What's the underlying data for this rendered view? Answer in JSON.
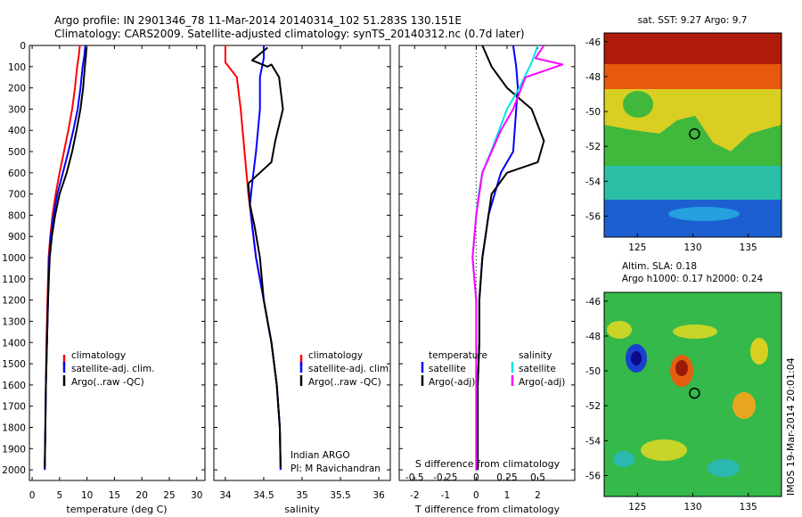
{
  "header": {
    "line1": "Argo profile: IN 2901346_78 11-Mar-2014 20140314_102 51.283S 130.151E",
    "line2": "Climatology: CARS2009. Satellite-adjusted climatology: synTS_20140312.nc (0.7d later)"
  },
  "colors": {
    "climatology": "#ff0000",
    "satellite": "#0000ff",
    "argo": "#000000",
    "satellite_salinity": "#00e5e5",
    "argo_salinity": "#ff00ff"
  },
  "chart_data": [
    {
      "id": "temperature",
      "type": "line",
      "xlabel": "temperature (deg C)",
      "ylabel": "",
      "xlim": [
        -0.5,
        31.5
      ],
      "ylim": [
        2050,
        0
      ],
      "xticks": [
        "0",
        "5",
        "10",
        "15",
        "20",
        "25",
        "30"
      ],
      "xtick_values": [
        0,
        5,
        10,
        15,
        20,
        25,
        30
      ],
      "yticks": [
        "0",
        "100",
        "200",
        "300",
        "400",
        "500",
        "600",
        "700",
        "800",
        "900",
        "1000",
        "1100",
        "1200",
        "1300",
        "1400",
        "1500",
        "1600",
        "1700",
        "1800",
        "1900",
        "2000"
      ],
      "ytick_values": [
        0,
        100,
        200,
        300,
        400,
        500,
        600,
        700,
        800,
        900,
        1000,
        1100,
        1200,
        1300,
        1400,
        1500,
        1600,
        1700,
        1800,
        1900,
        2000
      ],
      "legend": {
        "position": "lower-middle",
        "entries": [
          "climatology",
          "satellite-adj. clim.",
          "Argo(..raw -QC)"
        ]
      },
      "series": [
        {
          "name": "climatology",
          "color": "#ff0000",
          "points": [
            [
              8.7,
              0
            ],
            [
              8.5,
              50
            ],
            [
              8.2,
              100
            ],
            [
              7.8,
              200
            ],
            [
              7.3,
              300
            ],
            [
              6.6,
              400
            ],
            [
              5.8,
              500
            ],
            [
              5.0,
              600
            ],
            [
              4.3,
              700
            ],
            [
              3.7,
              800
            ],
            [
              3.3,
              900
            ],
            [
              3.0,
              1000
            ],
            [
              2.8,
              1200
            ],
            [
              2.6,
              1400
            ],
            [
              2.5,
              1600
            ],
            [
              2.4,
              1800
            ],
            [
              2.3,
              2000
            ]
          ]
        },
        {
          "name": "satellite-adj. clim.",
          "color": "#0000ff",
          "points": [
            [
              9.7,
              0
            ],
            [
              9.5,
              50
            ],
            [
              9.2,
              100
            ],
            [
              8.8,
              200
            ],
            [
              8.3,
              300
            ],
            [
              7.5,
              400
            ],
            [
              6.6,
              500
            ],
            [
              5.6,
              600
            ],
            [
              4.6,
              700
            ],
            [
              3.9,
              800
            ],
            [
              3.4,
              900
            ],
            [
              3.1,
              1000
            ],
            [
              2.9,
              1200
            ],
            [
              2.7,
              1400
            ],
            [
              2.5,
              1600
            ],
            [
              2.4,
              1800
            ],
            [
              2.3,
              2000
            ]
          ]
        },
        {
          "name": "Argo(..raw -QC)",
          "color": "#000000",
          "points": [
            [
              9.9,
              10
            ],
            [
              9.8,
              50
            ],
            [
              9.6,
              100
            ],
            [
              9.3,
              200
            ],
            [
              8.8,
              300
            ],
            [
              8.1,
              400
            ],
            [
              7.3,
              500
            ],
            [
              6.3,
              600
            ],
            [
              5.0,
              700
            ],
            [
              4.2,
              800
            ],
            [
              3.6,
              900
            ],
            [
              3.2,
              1000
            ],
            [
              2.9,
              1200
            ],
            [
              2.7,
              1400
            ],
            [
              2.5,
              1600
            ],
            [
              2.4,
              1800
            ],
            [
              2.3,
              1990
            ]
          ]
        }
      ]
    },
    {
      "id": "salinity",
      "type": "line",
      "xlabel": "salinity",
      "xlim": [
        33.85,
        36.15
      ],
      "ylim": [
        2050,
        0
      ],
      "xticks": [
        "34",
        "34.5",
        "35",
        "35.5",
        "36"
      ],
      "xtick_values": [
        34,
        34.5,
        35,
        35.5,
        36
      ],
      "legend": {
        "position": "lower-middle",
        "entries": [
          "climatology",
          "satellite-adj. clim.",
          "Argo(..raw -QC)"
        ]
      },
      "annotation": [
        "Indian ARGO",
        "PI: M Ravichandran"
      ],
      "series": [
        {
          "name": "climatology",
          "color": "#ff0000",
          "points": [
            [
              34.0,
              0
            ],
            [
              34.0,
              80
            ],
            [
              34.15,
              150
            ],
            [
              34.2,
              300
            ],
            [
              34.25,
              500
            ],
            [
              34.3,
              700
            ],
            [
              34.35,
              850
            ],
            [
              34.4,
              1000
            ],
            [
              34.5,
              1200
            ],
            [
              34.6,
              1400
            ],
            [
              34.67,
              1600
            ],
            [
              34.71,
              1800
            ],
            [
              34.72,
              2000
            ]
          ]
        },
        {
          "name": "satellite-adj. clim.",
          "color": "#0000ff",
          "points": [
            [
              34.5,
              0
            ],
            [
              34.5,
              60
            ],
            [
              34.45,
              150
            ],
            [
              34.45,
              300
            ],
            [
              34.4,
              500
            ],
            [
              34.35,
              650
            ],
            [
              34.32,
              750
            ],
            [
              34.35,
              850
            ],
            [
              34.4,
              1000
            ],
            [
              34.5,
              1200
            ],
            [
              34.6,
              1400
            ],
            [
              34.67,
              1600
            ],
            [
              34.71,
              1800
            ],
            [
              34.72,
              2000
            ]
          ]
        },
        {
          "name": "Argo(..raw -QC)",
          "color": "#000000",
          "points": [
            [
              34.55,
              10
            ],
            [
              34.35,
              70
            ],
            [
              34.55,
              100
            ],
            [
              34.6,
              90
            ],
            [
              34.7,
              150
            ],
            [
              34.75,
              300
            ],
            [
              34.65,
              450
            ],
            [
              34.6,
              550
            ],
            [
              34.3,
              650
            ],
            [
              34.32,
              750
            ],
            [
              34.38,
              850
            ],
            [
              34.45,
              1000
            ],
            [
              34.5,
              1200
            ],
            [
              34.6,
              1400
            ],
            [
              34.67,
              1600
            ],
            [
              34.71,
              1800
            ],
            [
              34.72,
              1990
            ]
          ]
        }
      ]
    },
    {
      "id": "difference",
      "type": "line",
      "xlabel": "T difference from climatology",
      "xlabel2": "S difference from climatology",
      "xlim": [
        -2.5,
        3.2
      ],
      "xlim2": [
        -0.625,
        0.8
      ],
      "ylim": [
        2050,
        0
      ],
      "xticks": [
        "-2",
        "-1",
        "0",
        "1",
        "2"
      ],
      "xtick_values": [
        -2,
        -1,
        0,
        1,
        2
      ],
      "xticks2": [
        "-0.5",
        "-0.25",
        "0",
        "0.25",
        "0.5"
      ],
      "xtick2_values": [
        -0.5,
        -0.25,
        0,
        0.25,
        0.5
      ],
      "legend": {
        "position": "lower-middle",
        "titles": [
          "temperature",
          "salinity"
        ],
        "entries": [
          "satellite",
          "Argo(-adj)",
          "satellite",
          "Argo(-adj)"
        ]
      },
      "series": [
        {
          "name": "satellite",
          "group": "temperature",
          "color": "#0000ff",
          "points": [
            [
              1.2,
              0
            ],
            [
              1.3,
              100
            ],
            [
              1.35,
              200
            ],
            [
              1.3,
              300
            ],
            [
              1.2,
              500
            ],
            [
              0.8,
              600
            ],
            [
              0.6,
              700
            ],
            [
              0.4,
              800
            ],
            [
              0.3,
              900
            ],
            [
              0.2,
              1000
            ],
            [
              0.1,
              1200
            ],
            [
              0.1,
              1400
            ],
            [
              0.05,
              1600
            ],
            [
              0.05,
              1800
            ],
            [
              0.05,
              2000
            ]
          ]
        },
        {
          "name": "Argo(-adj)",
          "group": "temperature",
          "color": "#000000",
          "points": [
            [
              0.2,
              0
            ],
            [
              0.5,
              100
            ],
            [
              1.0,
              200
            ],
            [
              1.8,
              300
            ],
            [
              2.2,
              450
            ],
            [
              2.0,
              550
            ],
            [
              1.0,
              600
            ],
            [
              0.5,
              700
            ],
            [
              0.4,
              800
            ],
            [
              0.3,
              900
            ],
            [
              0.2,
              1000
            ],
            [
              0.1,
              1200
            ],
            [
              0.1,
              1400
            ],
            [
              0.05,
              1600
            ],
            [
              0.05,
              1800
            ],
            [
              0.05,
              2000
            ]
          ]
        },
        {
          "name": "satellite",
          "group": "salinity",
          "color": "#00e5e5",
          "points": [
            [
              0.5,
              0
            ],
            [
              0.45,
              80
            ],
            [
              0.35,
              200
            ],
            [
              0.25,
              300
            ],
            [
              0.12,
              500
            ],
            [
              0.05,
              600
            ],
            [
              0.02,
              700
            ],
            [
              0.0,
              800
            ],
            [
              -0.03,
              1000
            ],
            [
              0.0,
              1200
            ],
            [
              0.0,
              1400
            ],
            [
              0.0,
              1600
            ],
            [
              0.0,
              1800
            ],
            [
              0.0,
              2000
            ]
          ]
        },
        {
          "name": "Argo(-adj)",
          "group": "salinity",
          "color": "#ff00ff",
          "points": [
            [
              0.55,
              0
            ],
            [
              0.48,
              60
            ],
            [
              0.7,
              90
            ],
            [
              0.4,
              150
            ],
            [
              0.3,
              300
            ],
            [
              0.2,
              400
            ],
            [
              0.05,
              600
            ],
            [
              0.0,
              800
            ],
            [
              -0.03,
              1000
            ],
            [
              0.0,
              1200
            ],
            [
              0.0,
              1400
            ],
            [
              0.0,
              1600
            ],
            [
              0.0,
              1800
            ],
            [
              0.0,
              2000
            ]
          ]
        }
      ]
    },
    {
      "id": "sst-map",
      "type": "heatmap",
      "title": "sat. SST: 9.27  Argo: 9.7",
      "xlim": [
        122,
        138
      ],
      "ylim": [
        -57.2,
        -45.5
      ],
      "xticks": [
        "125",
        "130",
        "135"
      ],
      "xtick_values": [
        125,
        130,
        135
      ],
      "yticks": [
        "-46",
        "-48",
        "-50",
        "-52",
        "-54",
        "-56"
      ],
      "ytick_values": [
        -46,
        -48,
        -50,
        -52,
        -54,
        -56
      ],
      "marker": {
        "lon": 130.15,
        "lat": -51.28
      }
    },
    {
      "id": "sla-map",
      "type": "heatmap",
      "title": "Altim. SLA: 0.18",
      "title2": "Argo h1000: 0.17 h2000: 0.24",
      "xlim": [
        122,
        138
      ],
      "ylim": [
        -57.2,
        -45.5
      ],
      "xticks": [
        "125",
        "130",
        "135"
      ],
      "xtick_values": [
        125,
        130,
        135
      ],
      "yticks": [
        "-46",
        "-48",
        "-50",
        "-52",
        "-54",
        "-56"
      ],
      "ytick_values": [
        -46,
        -48,
        -50,
        -52,
        -54,
        -56
      ],
      "marker": {
        "lon": 130.15,
        "lat": -51.28
      }
    }
  ],
  "stamp": "IMOS 19-Mar-2014 20:01:04"
}
